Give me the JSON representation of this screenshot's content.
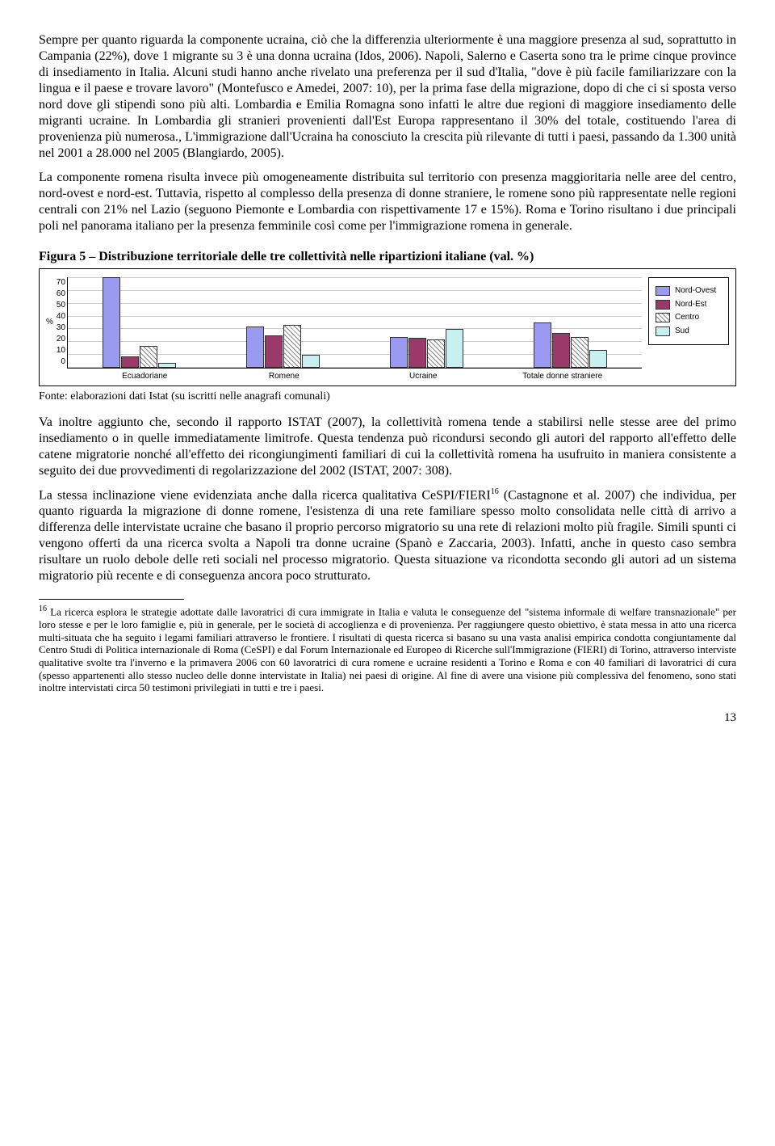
{
  "para1": "Sempre per quanto riguarda la componente ucraina, ciò che la differenzia ulteriormente è una maggiore presenza al sud, soprattutto in Campania (22%), dove 1 migrante su 3 è una donna ucraina (Idos, 2006). Napoli, Salerno e Caserta sono tra le prime cinque province di insediamento in Italia. Alcuni studi hanno anche rivelato una preferenza per il sud d'Italia, \"dove è più facile familiarizzare con la lingua e il paese e trovare lavoro\" (Montefusco e Amedei, 2007: 10), per la prima fase della migrazione, dopo di che ci si sposta verso nord dove gli stipendi sono più alti. Lombardia e Emilia Romagna sono infatti le altre due regioni di maggiore insediamento delle migranti ucraine. In Lombardia gli stranieri provenienti dall'Est Europa rappresentano il 30% del totale, costituendo l'area di provenienza più numerosa., L'immigrazione dall'Ucraina ha conosciuto la crescita più rilevante di tutti i paesi, passando da 1.300 unità nel 2001 a 28.000 nel 2005 (Blangiardo, 2005).",
  "para2": "La componente romena risulta invece più omogeneamente distribuita sul territorio con presenza maggioritaria nelle aree del centro, nord-ovest e nord-est. Tuttavia, rispetto al complesso della presenza di donne straniere, le romene sono più rappresentate nelle regioni centrali con 21% nel Lazio (seguono Piemonte e Lombardia con rispettivamente 17 e 15%). Roma e Torino risultano i due principali poli nel panorama italiano per la presenza femminile così come per l'immigrazione romena in generale.",
  "figcap": "Figura 5 – Distribuzione territoriale delle tre collettività nelle ripartizioni italiane (val. %)",
  "chart": {
    "ylabel": "%",
    "ymax": 70,
    "ytick_step": 10,
    "categories": [
      "Ecuadoriane",
      "Romene",
      "Ucraine",
      "Totale donne straniere"
    ],
    "series": [
      {
        "name": "Nord-Ovest",
        "color": "#9a9af0",
        "pattern": "solid"
      },
      {
        "name": "Nord-Est",
        "color": "#9b3a6a",
        "pattern": "solid"
      },
      {
        "name": "Centro",
        "color": "#ffffff",
        "pattern": "hatched"
      },
      {
        "name": "Sud",
        "color": "#c8f0f0",
        "pattern": "solid"
      }
    ],
    "data": [
      [
        70,
        9,
        17,
        4
      ],
      [
        32,
        25,
        33,
        10
      ],
      [
        24,
        23,
        22,
        30
      ],
      [
        35,
        27,
        24,
        14
      ]
    ],
    "grid_color": "#cccccc",
    "border_color": "#000000",
    "bar_border": "#333333",
    "label_fontsize": 10,
    "label_font": "Arial"
  },
  "source": "Fonte: elaborazioni dati Istat (su iscritti nelle anagrafi comunali)",
  "para3": "Va inoltre aggiunto che, secondo il rapporto ISTAT (2007), la collettività romena tende a stabilirsi nelle stesse aree del primo insediamento o in quelle immediatamente limitrofe. Questa tendenza può ricondursi secondo gli autori del rapporto all'effetto delle catene migratorie nonché all'effetto dei ricongiungimenti familiari di cui la collettività romena ha usufruito in maniera consistente a seguito dei due provvedimenti di regolarizzazione del 2002 (ISTAT, 2007: 308).",
  "para4a": "La stessa inclinazione viene evidenziata anche dalla ricerca qualitativa CeSPI/FIERI",
  "para4sup": "16",
  "para4b": " (Castagnone et al. 2007) che individua, per quanto riguarda la migrazione di donne romene, l'esistenza di una rete familiare spesso molto consolidata nelle città di arrivo a differenza delle intervistate ucraine che basano il proprio percorso migratorio su una rete di relazioni molto più fragile. Simili spunti ci vengono offerti da una ricerca svolta a Napoli tra donne ucraine (Spanò e Zaccaria, 2003). Infatti, anche in questo caso sembra risultare un ruolo debole delle reti sociali nel processo migratorio. Questa situazione va ricondotta secondo gli autori ad un sistema migratorio più recente e di conseguenza ancora poco strutturato.",
  "footnote_num": "16",
  "footnote": " La ricerca esplora le strategie adottate dalle lavoratrici di cura immigrate in Italia e valuta le conseguenze del \"sistema informale di welfare transnazionale\" per loro stesse e per le loro famiglie e, più in generale, per le società di accoglienza e di provenienza. Per raggiungere questo obiettivo, è stata messa in atto una ricerca multi-situata che ha seguito i legami familiari attraverso le frontiere. I risultati di questa ricerca si basano su una vasta analisi empirica condotta congiuntamente dal Centro Studi di Politica internazionale di Roma (CeSPI) e dal Forum Internazionale ed Europeo di Ricerche sull'Immigrazione (FIERI) di Torino, attraverso interviste qualitative svolte tra l'inverno e la primavera 2006 con 60 lavoratrici di cura romene e ucraine residenti a Torino e Roma e con 40 familiari di lavoratrici di cura (spesso appartenenti allo stesso nucleo delle donne intervistate in Italia) nei paesi di origine. Al fine di avere una visione più complessiva del fenomeno, sono stati inoltre intervistati circa 50 testimoni privilegiati in tutti e tre i paesi.",
  "pagenum": "13"
}
